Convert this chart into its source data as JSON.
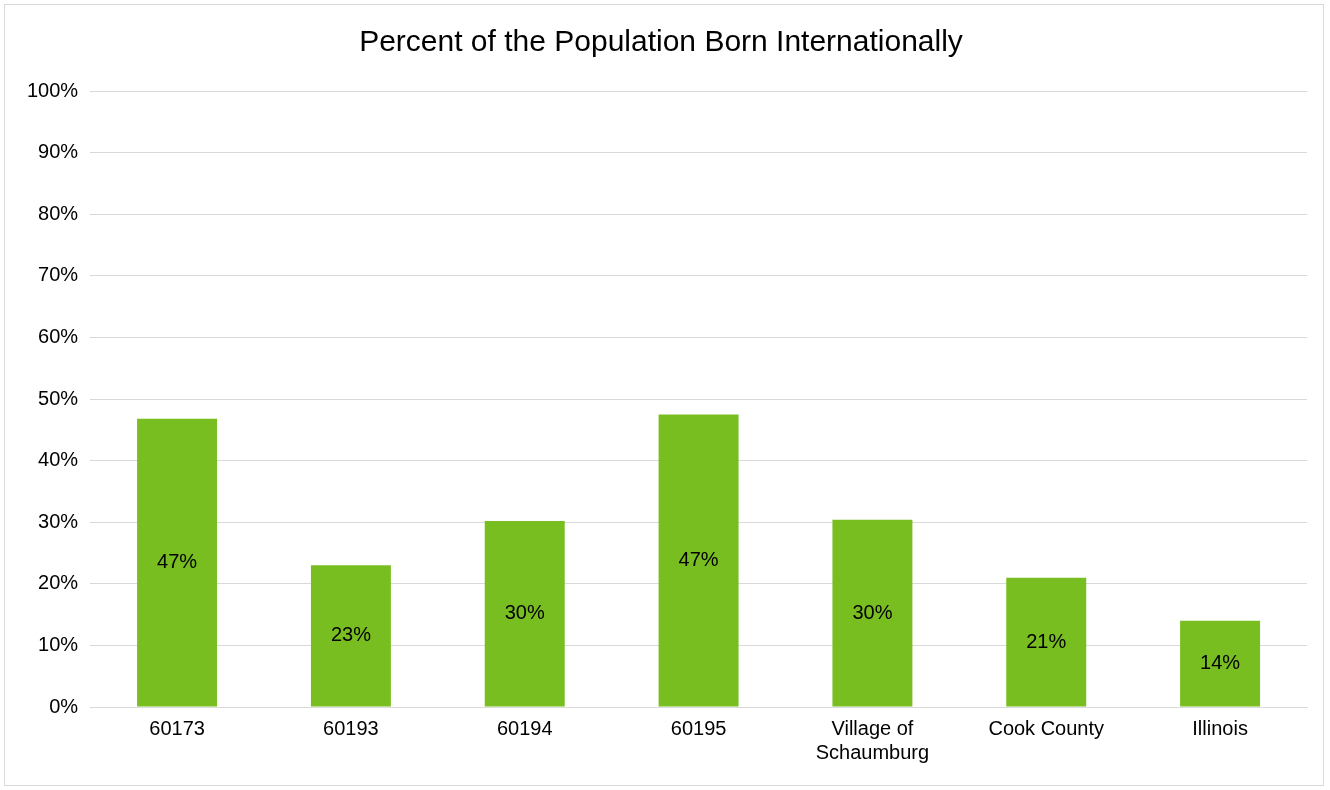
{
  "chart_data": {
    "type": "bar",
    "title": "Percent of the Population Born Internationally",
    "categories": [
      "60173",
      "60193",
      "60194",
      "60195",
      "Village of Schaumburg",
      "Cook County",
      "Illinois"
    ],
    "values": [
      46.8,
      23,
      30.2,
      47.5,
      30.4,
      21,
      14
    ],
    "color": "#78be20",
    "value_labels": [
      "47%",
      "23%",
      "30%",
      "47%",
      "30%",
      "21%",
      "14%"
    ],
    "ylim": [
      0,
      100
    ],
    "yticks": [
      {
        "value": 0,
        "label": "0%"
      },
      {
        "value": 10,
        "label": "10%"
      },
      {
        "value": 20,
        "label": "20%"
      },
      {
        "value": 30,
        "label": "30%"
      },
      {
        "value": 40,
        "label": "40%"
      },
      {
        "value": 50,
        "label": "50%"
      },
      {
        "value": 60,
        "label": "60%"
      },
      {
        "value": 70,
        "label": "70%"
      },
      {
        "value": 80,
        "label": "80%"
      },
      {
        "value": 90,
        "label": "90%"
      },
      {
        "value": 100,
        "label": "100%"
      }
    ],
    "grid": "y",
    "legend": false
  }
}
